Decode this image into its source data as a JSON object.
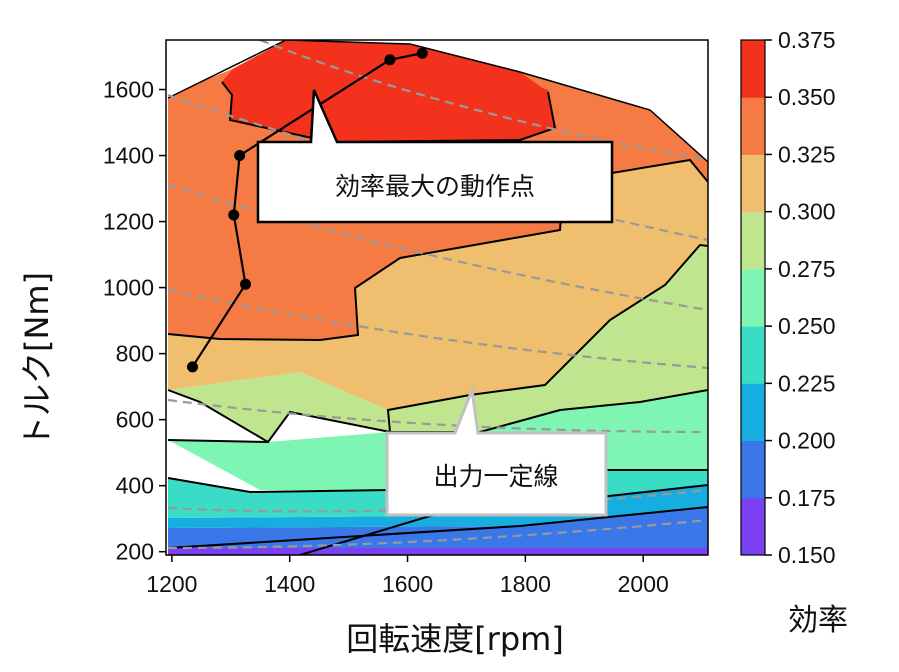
{
  "chart_data": {
    "type": "contour",
    "xlabel": "回転速度[rpm]",
    "ylabel": "トルク[Nm]",
    "xlim": [
      1190,
      2110
    ],
    "ylim": [
      190,
      1750
    ],
    "x_ticks": [
      1200,
      1400,
      1600,
      1800,
      2000
    ],
    "y_ticks": [
      200,
      400,
      600,
      800,
      1000,
      1200,
      1400,
      1600
    ],
    "colorbar": {
      "label": "効率",
      "levels": [
        0.15,
        0.175,
        0.2,
        0.225,
        0.25,
        0.275,
        0.3,
        0.325,
        0.35,
        0.375
      ],
      "tick_labels": [
        "0.150",
        "0.175",
        "0.200",
        "0.225",
        "0.250",
        "0.275",
        "0.300",
        "0.325",
        "0.350",
        "0.375"
      ],
      "colors": [
        "#7a40f2",
        "#3a78ea",
        "#16aee0",
        "#3bdcc6",
        "#7ff5b4",
        "#bfe68e",
        "#efbe6e",
        "#f67a44",
        "#f2321c"
      ]
    },
    "max_efficiency_line": {
      "name": "効率最大の動作点",
      "points": [
        {
          "x": 1235,
          "y": 760
        },
        {
          "x": 1325,
          "y": 1010
        },
        {
          "x": 1305,
          "y": 1220
        },
        {
          "x": 1315,
          "y": 1400
        },
        {
          "x": 1570,
          "y": 1690
        },
        {
          "x": 1625,
          "y": 1710
        }
      ]
    },
    "constant_power_lines": {
      "name": "出力一定線",
      "style": "dashed gray"
    },
    "annotations": [
      {
        "text": "効率最大の動作点"
      },
      {
        "text": "出力一定線"
      }
    ],
    "colors": {
      "contour_line": "#000000",
      "dashed_line": "#999999",
      "background": "#ffffff"
    }
  }
}
